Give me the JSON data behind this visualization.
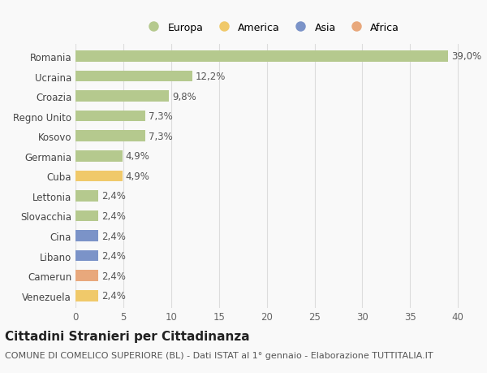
{
  "categories": [
    "Venezuela",
    "Camerun",
    "Libano",
    "Cina",
    "Slovacchia",
    "Lettonia",
    "Cuba",
    "Germania",
    "Kosovo",
    "Regno Unito",
    "Croazia",
    "Ucraina",
    "Romania"
  ],
  "values": [
    2.4,
    2.4,
    2.4,
    2.4,
    2.4,
    2.4,
    4.9,
    4.9,
    7.3,
    7.3,
    9.8,
    12.2,
    39.0
  ],
  "labels": [
    "2,4%",
    "2,4%",
    "2,4%",
    "2,4%",
    "2,4%",
    "2,4%",
    "4,9%",
    "4,9%",
    "7,3%",
    "7,3%",
    "9,8%",
    "12,2%",
    "39,0%"
  ],
  "colors": [
    "#f0c96a",
    "#e8a87c",
    "#7b93c8",
    "#7b93c8",
    "#b5c98e",
    "#b5c98e",
    "#f0c96a",
    "#b5c98e",
    "#b5c98e",
    "#b5c98e",
    "#b5c98e",
    "#b5c98e",
    "#b5c98e"
  ],
  "legend_labels": [
    "Europa",
    "America",
    "Asia",
    "Africa"
  ],
  "legend_colors": [
    "#b5c98e",
    "#f0c96a",
    "#7b93c8",
    "#e8a87c"
  ],
  "title": "Cittadini Stranieri per Cittadinanza",
  "subtitle": "COMUNE DI COMELICO SUPERIORE (BL) - Dati ISTAT al 1° gennaio - Elaborazione TUTTITALIA.IT",
  "xlim": [
    0,
    41
  ],
  "xticks": [
    0,
    5,
    10,
    15,
    20,
    25,
    30,
    35,
    40
  ],
  "background_color": "#f9f9f9",
  "grid_color": "#dddddd",
  "bar_height": 0.55,
  "label_fontsize": 8.5,
  "tick_fontsize": 8.5,
  "title_fontsize": 11,
  "subtitle_fontsize": 8
}
